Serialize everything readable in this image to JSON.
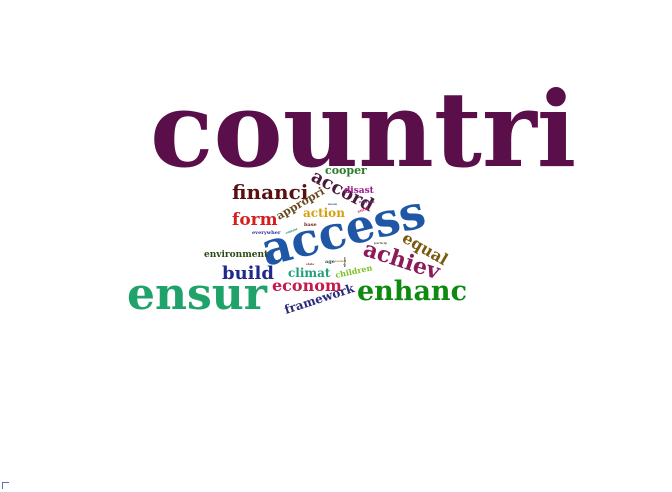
{
  "words": [
    {
      "text": "countri",
      "color": "#5a0f4a",
      "weight": 100
    },
    {
      "text": "access",
      "color": "#1f57a6",
      "weight": 52
    },
    {
      "text": "ensur",
      "color": "#1fa36a",
      "weight": 48
    },
    {
      "text": "enhanc",
      "color": "#0f8a10",
      "weight": 30
    },
    {
      "text": "achiev",
      "color": "#8a1a5a",
      "weight": 24
    },
    {
      "text": "accord",
      "color": "#4a1a3a",
      "weight": 21
    },
    {
      "text": "financi",
      "color": "#5a1010",
      "weight": 21
    },
    {
      "text": "build",
      "color": "#1f2a8a",
      "weight": 20
    },
    {
      "text": "form",
      "color": "#d42020",
      "weight": 18
    },
    {
      "text": "equal",
      "color": "#7a5a10",
      "weight": 18
    },
    {
      "text": "econom",
      "color": "#c21a4a",
      "weight": 17
    },
    {
      "text": "framework",
      "color": "#2a2a7a",
      "weight": 14
    },
    {
      "text": "climat",
      "color": "#20a07a",
      "weight": 13
    },
    {
      "text": "action",
      "color": "#d4a010",
      "weight": 13
    },
    {
      "text": "appropri",
      "color": "#6a4a20",
      "weight": 12
    },
    {
      "text": "cooper",
      "color": "#2a7a2a",
      "weight": 11
    },
    {
      "text": "environment",
      "color": "#2a4a1a",
      "weight": 9
    },
    {
      "text": "disast",
      "color": "#a01a8a",
      "weight": 9
    },
    {
      "text": "children",
      "color": "#7ac020",
      "weight": 8
    },
    {
      "text": "everywher",
      "color": "#2a2aa0",
      "weight": 5
    },
    {
      "text": "base",
      "color": "#6a1a1a",
      "weight": 5
    },
    {
      "text": "age",
      "color": "#2a4a4a",
      "weight": 5
    },
    {
      "text": "extrem",
      "color": "#6a3a8a",
      "weight": 4
    },
    {
      "text": "ental",
      "color": "#d01a6a",
      "weight": 4
    },
    {
      "text": "control",
      "color": "#1a7a6a",
      "weight": 3
    },
    {
      "text": "adequ",
      "color": "#2a2a2a",
      "weight": 3
    },
    {
      "text": "particip",
      "color": "#5a5a2a",
      "weight": 3
    },
    {
      "text": "societi",
      "color": "#aa7a1a",
      "weight": 3
    },
    {
      "text": "state",
      "color": "#8a2a2a",
      "weight": 3
    },
    {
      "text": "mean",
      "color": "#3a5a8a",
      "weight": 3
    }
  ]
}
